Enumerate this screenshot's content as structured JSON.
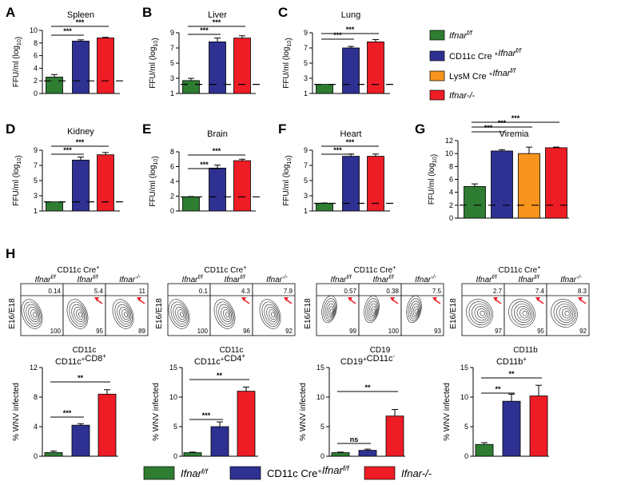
{
  "colors": {
    "ifnar_ff": "#2e7d32",
    "cd11c_cre": "#2e3192",
    "lysm_cre": "#f7941d",
    "ifnar_ko": "#ee1c25",
    "arrow": "#ee1c25"
  },
  "legend": [
    {
      "key": "ifnar_ff",
      "label": "Ifnar",
      "sup": "f/f"
    },
    {
      "key": "cd11c_cre",
      "label": "CD11c Cre",
      "sup": "+",
      "label2": "Ifnar",
      "sup2": "f/f"
    },
    {
      "key": "lysm_cre",
      "label": "LysM Cre",
      "sup": "+",
      "label2": "Ifnar",
      "sup2": "f/f"
    },
    {
      "key": "ifnar_ko",
      "label": "Ifnar-/-"
    }
  ],
  "bottom_legend": [
    {
      "key": "ifnar_ff",
      "label": "Ifnar",
      "sup": "f/f"
    },
    {
      "key": "cd11c_cre",
      "label": "CD11c Cre",
      "sup": "+",
      "label2": "Ifnar",
      "sup2": "f/f"
    },
    {
      "key": "ifnar_ko",
      "label": "Ifnar-/-"
    }
  ],
  "chart_data": [
    {
      "id": "A",
      "type": "bar",
      "title": "Spleen",
      "ylabel": "FFU/ml (log10)",
      "ylim": [
        0,
        10
      ],
      "yticks": [
        0,
        2,
        4,
        6,
        8,
        10
      ],
      "series": [
        {
          "group": "ifnar_ff",
          "value": 2.6,
          "err": 0.4
        },
        {
          "group": "cd11c_cre",
          "value": 8.3,
          "err": 0.2
        },
        {
          "group": "ifnar_ko",
          "value": 8.8,
          "err": 0.1
        }
      ],
      "limit_of_detection": 2.0,
      "significance": [
        {
          "label": "***"
        },
        {
          "label": "***"
        }
      ]
    },
    {
      "id": "B",
      "type": "bar",
      "title": "Liver",
      "ylabel": "FFU/ml (log10)",
      "ylim": [
        1,
        9
      ],
      "yticks": [
        1,
        3,
        5,
        7,
        9
      ],
      "series": [
        {
          "group": "ifnar_ff",
          "value": 2.7,
          "err": 0.3
        },
        {
          "group": "cd11c_cre",
          "value": 7.8,
          "err": 0.5
        },
        {
          "group": "ifnar_ko",
          "value": 8.3,
          "err": 0.3
        }
      ],
      "limit_of_detection": 2.2,
      "significance": [
        {
          "label": "***"
        },
        {
          "label": "***"
        }
      ]
    },
    {
      "id": "C",
      "type": "bar",
      "title": "Lung",
      "ylabel": "FFU/ml (log10)",
      "ylim": [
        1,
        9
      ],
      "yticks": [
        1,
        3,
        5,
        7,
        9
      ],
      "series": [
        {
          "group": "ifnar_ff",
          "value": 2.2,
          "err": 0.0
        },
        {
          "group": "cd11c_cre",
          "value": 7.0,
          "err": 0.2
        },
        {
          "group": "ifnar_ko",
          "value": 7.8,
          "err": 0.3
        }
      ],
      "limit_of_detection": 2.2,
      "significance": [
        {
          "label": "***"
        },
        {
          "label": "***"
        }
      ]
    },
    {
      "id": "D",
      "type": "bar",
      "title": "Kidney",
      "ylabel": "FFU/ml (log10)",
      "ylim": [
        1,
        9
      ],
      "yticks": [
        1,
        3,
        5,
        7,
        9
      ],
      "series": [
        {
          "group": "ifnar_ff",
          "value": 2.2,
          "err": 0.0
        },
        {
          "group": "cd11c_cre",
          "value": 7.7,
          "err": 0.4
        },
        {
          "group": "ifnar_ko",
          "value": 8.4,
          "err": 0.3
        }
      ],
      "limit_of_detection": 2.2,
      "significance": [
        {
          "label": "***"
        },
        {
          "label": "***"
        }
      ]
    },
    {
      "id": "E",
      "type": "bar",
      "title": "Brain",
      "ylabel": "FFU/ml (log10)",
      "ylim": [
        0,
        8
      ],
      "yticks": [
        0,
        2,
        4,
        6,
        8
      ],
      "series": [
        {
          "group": "ifnar_ff",
          "value": 1.9,
          "err": 0.05
        },
        {
          "group": "cd11c_cre",
          "value": 5.8,
          "err": 0.4
        },
        {
          "group": "ifnar_ko",
          "value": 6.8,
          "err": 0.2
        }
      ],
      "limit_of_detection": 1.9,
      "significance": [
        {
          "label": "***"
        },
        {
          "label": "***"
        }
      ]
    },
    {
      "id": "F",
      "type": "bar",
      "title": "Heart",
      "ylabel": "FFU/ml (log10)",
      "ylim": [
        1,
        9
      ],
      "yticks": [
        1,
        3,
        5,
        7,
        9
      ],
      "series": [
        {
          "group": "ifnar_ff",
          "value": 2.0,
          "err": 0.05
        },
        {
          "group": "cd11c_cre",
          "value": 8.2,
          "err": 0.3
        },
        {
          "group": "ifnar_ko",
          "value": 8.2,
          "err": 0.3
        }
      ],
      "limit_of_detection": 2.0,
      "significance": [
        {
          "label": "***"
        },
        {
          "label": "***"
        }
      ]
    },
    {
      "id": "G",
      "type": "bar",
      "title": "Viremia",
      "ylabel": "FFU/ml (log10)",
      "ylim": [
        0,
        12
      ],
      "yticks": [
        0,
        2,
        4,
        6,
        8,
        10,
        12
      ],
      "series": [
        {
          "group": "ifnar_ff",
          "value": 4.9,
          "err": 0.4
        },
        {
          "group": "cd11c_cre",
          "value": 10.4,
          "err": 0.2
        },
        {
          "group": "lysm_cre",
          "value": 10.0,
          "err": 1.0
        },
        {
          "group": "ifnar_ko",
          "value": 10.9,
          "err": 0.1
        }
      ],
      "limit_of_detection": 2.0,
      "significance": [
        {
          "label": "***"
        },
        {
          "label": "***"
        },
        {
          "label": "***"
        }
      ]
    },
    {
      "id": "H1",
      "type": "bar",
      "title": "CD11c+CD8+",
      "ylabel": "% WNV infected",
      "ylim": [
        0,
        12
      ],
      "yticks": [
        0,
        4,
        8,
        12
      ],
      "series": [
        {
          "group": "ifnar_ff",
          "value": 0.5,
          "err": 0.2
        },
        {
          "group": "cd11c_cre",
          "value": 4.2,
          "err": 0.2
        },
        {
          "group": "ifnar_ko",
          "value": 8.4,
          "err": 0.6
        }
      ],
      "significance": [
        {
          "label": "***"
        },
        {
          "label": "**"
        }
      ]
    },
    {
      "id": "H2",
      "type": "bar",
      "title": "CD11c+CD4+",
      "ylabel": "% WNV infected",
      "ylim": [
        0,
        15
      ],
      "yticks": [
        0,
        5,
        10,
        15
      ],
      "series": [
        {
          "group": "ifnar_ff",
          "value": 0.6,
          "err": 0.1
        },
        {
          "group": "cd11c_cre",
          "value": 5.0,
          "err": 0.8
        },
        {
          "group": "ifnar_ko",
          "value": 11.0,
          "err": 0.7
        }
      ],
      "significance": [
        {
          "label": "***"
        },
        {
          "label": "**"
        }
      ]
    },
    {
      "id": "H3",
      "type": "bar",
      "title": "CD19+CD11c-",
      "ylabel": "% WNV infected",
      "ylim": [
        0,
        15
      ],
      "yticks": [
        0,
        5,
        10,
        15
      ],
      "series": [
        {
          "group": "ifnar_ff",
          "value": 0.6,
          "err": 0.1
        },
        {
          "group": "cd11c_cre",
          "value": 1.0,
          "err": 0.2
        },
        {
          "group": "ifnar_ko",
          "value": 6.8,
          "err": 1.1
        }
      ],
      "significance": [
        {
          "label": "ns"
        },
        {
          "label": "**"
        }
      ]
    },
    {
      "id": "H4",
      "type": "bar",
      "title": "CD11b+",
      "ylabel": "% WNV infected",
      "ylim": [
        0,
        15
      ],
      "yticks": [
        0,
        5,
        10,
        15
      ],
      "series": [
        {
          "group": "ifnar_ff",
          "value": 2.0,
          "err": 0.3
        },
        {
          "group": "cd11c_cre",
          "value": 9.3,
          "err": 1.2
        },
        {
          "group": "ifnar_ko",
          "value": 10.2,
          "err": 1.8
        }
      ],
      "significance": [
        {
          "label": "**"
        },
        {
          "label": "**"
        }
      ]
    }
  ],
  "flow_panels": [
    {
      "header": "CD11c Cre+",
      "ylabel": "E16/E18",
      "xlabel": "CD11c",
      "cols": [
        {
          "label": "Ifnarf/f",
          "top": "0.14",
          "bottom": "100"
        },
        {
          "label": "Ifnarf/f",
          "top": "5.4",
          "bottom": "95"
        },
        {
          "label": "Ifnar-/-",
          "top": "11",
          "bottom": "89"
        }
      ]
    },
    {
      "header": "CD11c Cre+",
      "ylabel": "E16/E18",
      "xlabel": "CD11c",
      "cols": [
        {
          "label": "Ifnarf/f",
          "top": "0.1",
          "bottom": "100"
        },
        {
          "label": "Ifnarf/f",
          "top": "4.3",
          "bottom": "96"
        },
        {
          "label": "Ifnar-/-",
          "top": "7.9",
          "bottom": "92"
        }
      ]
    },
    {
      "header": "CD11c Cre+",
      "ylabel": "E16/E18",
      "xlabel": "CD19",
      "cols": [
        {
          "label": "Ifnarf/f",
          "top": "0.57",
          "bottom": "99"
        },
        {
          "label": "Ifnarf/f",
          "top": "0.38",
          "bottom": "100"
        },
        {
          "label": "Ifnar-/-",
          "top": "7.5",
          "bottom": "93"
        }
      ]
    },
    {
      "header": "CD11c Cre+",
      "ylabel": "E16/E18",
      "xlabel": "CD11b",
      "cols": [
        {
          "label": "Ifnarf/f",
          "top": "2.7",
          "bottom": "97"
        },
        {
          "label": "Ifnarf/f",
          "top": "7.4",
          "bottom": "95"
        },
        {
          "label": "Ifnar-/-",
          "top": "8.3",
          "bottom": "92"
        }
      ]
    }
  ]
}
